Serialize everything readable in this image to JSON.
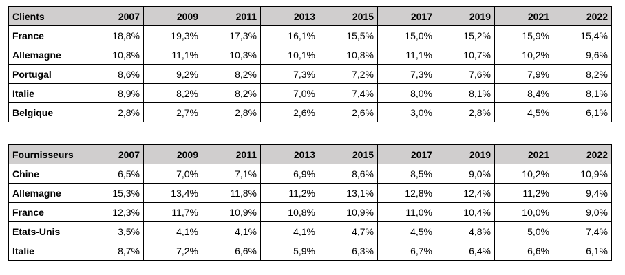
{
  "years": [
    "2007",
    "2009",
    "2011",
    "2013",
    "2015",
    "2017",
    "2019",
    "2021",
    "2022"
  ],
  "clients": {
    "header": "Clients",
    "rows": [
      {
        "label": "France",
        "values": [
          "18,8%",
          "19,3%",
          "17,3%",
          "16,1%",
          "15,5%",
          "15,0%",
          "15,2%",
          "15,9%",
          "15,4%"
        ]
      },
      {
        "label": "Allemagne",
        "values": [
          "10,8%",
          "11,1%",
          "10,3%",
          "10,1%",
          "10,8%",
          "11,1%",
          "10,7%",
          "10,2%",
          "9,6%"
        ]
      },
      {
        "label": "Portugal",
        "values": [
          "8,6%",
          "9,2%",
          "8,2%",
          "7,3%",
          "7,2%",
          "7,3%",
          "7,6%",
          "7,9%",
          "8,2%"
        ]
      },
      {
        "label": "Italie",
        "values": [
          "8,9%",
          "8,2%",
          "8,2%",
          "7,0%",
          "7,4%",
          "8,0%",
          "8,1%",
          "8,4%",
          "8,1%"
        ]
      },
      {
        "label": "Belgique",
        "values": [
          "2,8%",
          "2,7%",
          "2,8%",
          "2,6%",
          "2,6%",
          "3,0%",
          "2,8%",
          "4,5%",
          "6,1%"
        ]
      }
    ]
  },
  "suppliers": {
    "header": "Fournisseurs",
    "rows": [
      {
        "label": "Chine",
        "values": [
          "6,5%",
          "7,0%",
          "7,1%",
          "6,9%",
          "8,6%",
          "8,5%",
          "9,0%",
          "10,2%",
          "10,9%"
        ]
      },
      {
        "label": "Allemagne",
        "values": [
          "15,3%",
          "13,4%",
          "11,8%",
          "11,2%",
          "13,1%",
          "12,8%",
          "12,4%",
          "11,2%",
          "9,4%"
        ]
      },
      {
        "label": "France",
        "values": [
          "12,3%",
          "11,7%",
          "10,9%",
          "10,8%",
          "10,9%",
          "11,0%",
          "10,4%",
          "10,0%",
          "9,0%"
        ]
      },
      {
        "label": "Etats-Unis",
        "values": [
          "3,5%",
          "4,1%",
          "4,1%",
          "4,1%",
          "4,7%",
          "4,5%",
          "4,8%",
          "5,0%",
          "7,4%"
        ]
      },
      {
        "label": "Italie",
        "values": [
          "8,7%",
          "7,2%",
          "6,6%",
          "5,9%",
          "6,3%",
          "6,7%",
          "6,4%",
          "6,6%",
          "6,1%"
        ]
      }
    ]
  },
  "colors": {
    "header_background": "#d0cece",
    "border": "#000000"
  }
}
